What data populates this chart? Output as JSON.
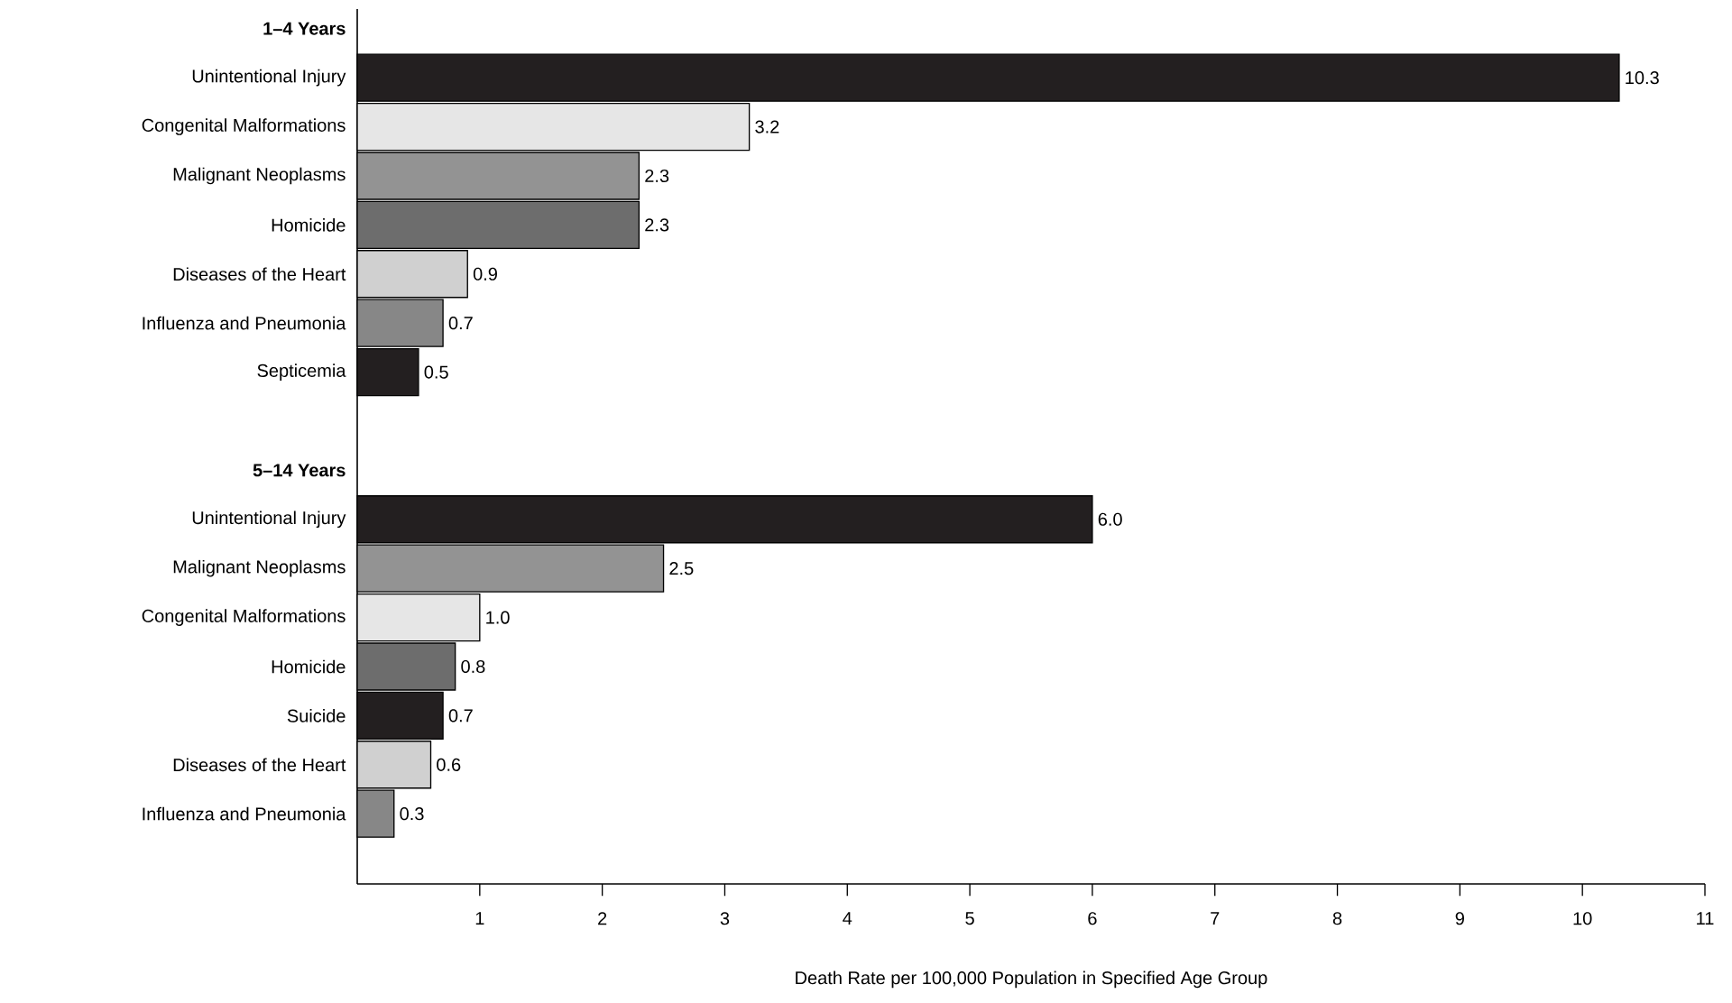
{
  "chart_data": {
    "type": "bar",
    "orientation": "horizontal",
    "categories": [
      "1–4 Years",
      "Unintentional Injury",
      "Congenital Malformations",
      "Malignant Neoplasms",
      "Homicide",
      "Diseases of the Heart",
      "Influenza and Pneumonia",
      "Septicemia",
      null,
      "5–14 Years",
      "Unintentional Injury",
      "Malignant Neoplasms",
      "Congenital Malformations",
      "Homicide",
      "Suicide",
      "Diseases of the Heart",
      "Influenza and Pneumonia"
    ],
    "values": [
      null,
      10.3,
      3.2,
      2.3,
      2.3,
      0.9,
      0.7,
      0.5,
      null,
      null,
      6.0,
      2.5,
      1.0,
      0.8,
      0.7,
      0.6,
      0.3
    ],
    "value_labels": [
      null,
      "10.3",
      "3.2",
      "2.3",
      "2.3",
      "0.9",
      "0.7",
      "0.5",
      null,
      null,
      "6.0",
      "2.5",
      "1.0",
      "0.8",
      "0.7",
      "0.6",
      "0.3"
    ],
    "colors": [
      null,
      "#231f20",
      "#e6e6e6",
      "#939393",
      "#6d6d6d",
      "#d0d0d0",
      "#878787",
      "#231f20",
      null,
      null,
      "#231f20",
      "#939393",
      "#e6e6e6",
      "#6d6d6d",
      "#231f20",
      "#d0d0d0",
      "#878787"
    ],
    "xlim": [
      0,
      11
    ],
    "xticks": [
      1,
      2,
      3,
      4,
      5,
      6,
      7,
      8,
      9,
      10,
      11
    ],
    "xlabel": "Death Rate per 100,000 Population in Specified Age Group"
  }
}
